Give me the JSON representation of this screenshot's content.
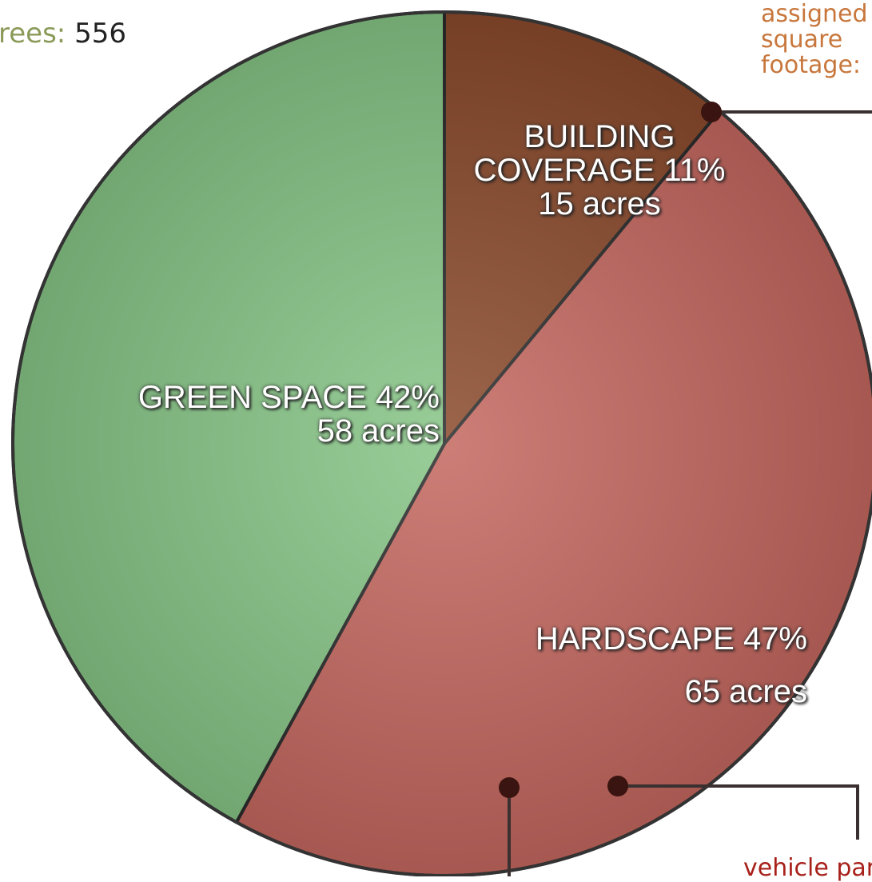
{
  "chart_data": {
    "type": "pie",
    "categories": [
      "GREEN SPACE",
      "BUILDING COVERAGE",
      "HARDSCAPE"
    ],
    "values": [
      42,
      11,
      47
    ],
    "value_labels": [
      "42%",
      "11%",
      "47%"
    ],
    "area_labels": [
      "58 acres",
      "15 acres",
      "65 acres"
    ],
    "colors": [
      "#86c486",
      "#8a4a2c",
      "#c4675f"
    ],
    "start_category": "BUILDING COVERAGE",
    "callouts": {
      "trees_label": "rees:",
      "trees_value": "556",
      "footage_lines": [
        "assigned",
        "square",
        "footage:"
      ],
      "parking": "vehicle par"
    }
  }
}
